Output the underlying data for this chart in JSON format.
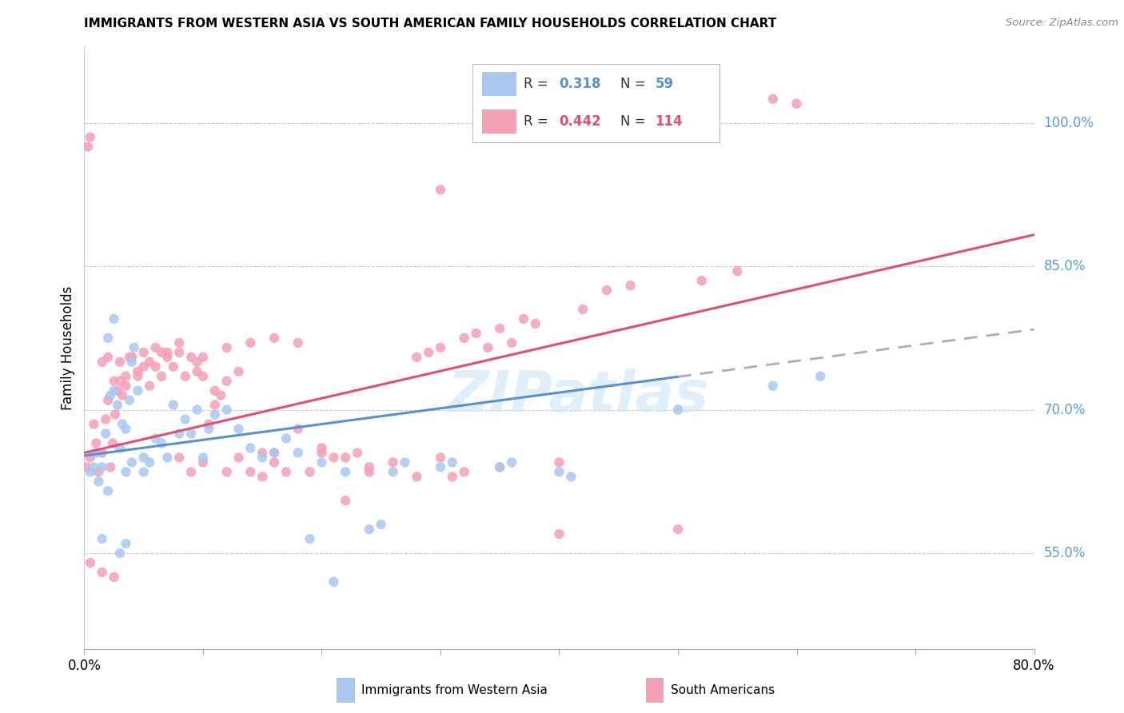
{
  "title": "IMMIGRANTS FROM WESTERN ASIA VS SOUTH AMERICAN FAMILY HOUSEHOLDS CORRELATION CHART",
  "source": "Source: ZipAtlas.com",
  "ylabel": "Family Households",
  "blue_color": "#A8C8F0",
  "pink_color": "#F4A0B5",
  "line_blue": "#5B8FD0",
  "line_pink": "#E05070",
  "line_dash_color": "#AAAACC",
  "watermark": "ZIPatlas",
  "blue_scatter": [
    [
      0.5,
      63.5
    ],
    [
      0.8,
      64.0
    ],
    [
      1.0,
      65.5
    ],
    [
      1.2,
      62.5
    ],
    [
      1.5,
      64.0
    ],
    [
      1.8,
      67.5
    ],
    [
      2.0,
      61.5
    ],
    [
      2.2,
      71.5
    ],
    [
      2.5,
      72.0
    ],
    [
      2.8,
      70.5
    ],
    [
      3.0,
      66.0
    ],
    [
      3.2,
      68.5
    ],
    [
      3.5,
      68.0
    ],
    [
      3.8,
      71.0
    ],
    [
      4.0,
      75.0
    ],
    [
      4.2,
      76.5
    ],
    [
      4.5,
      72.0
    ],
    [
      5.0,
      65.0
    ],
    [
      5.5,
      64.5
    ],
    [
      6.0,
      67.0
    ],
    [
      6.5,
      66.5
    ],
    [
      7.0,
      65.0
    ],
    [
      7.5,
      70.5
    ],
    [
      8.0,
      67.5
    ],
    [
      8.5,
      69.0
    ],
    [
      9.0,
      67.5
    ],
    [
      9.5,
      70.0
    ],
    [
      10.0,
      65.0
    ],
    [
      10.5,
      68.0
    ],
    [
      11.0,
      69.5
    ],
    [
      12.0,
      70.0
    ],
    [
      13.0,
      68.0
    ],
    [
      14.0,
      66.0
    ],
    [
      15.0,
      65.0
    ],
    [
      16.0,
      65.5
    ],
    [
      17.0,
      67.0
    ],
    [
      18.0,
      65.5
    ],
    [
      19.0,
      56.5
    ],
    [
      20.0,
      64.5
    ],
    [
      21.0,
      52.0
    ],
    [
      22.0,
      63.5
    ],
    [
      24.0,
      57.5
    ],
    [
      25.0,
      58.0
    ],
    [
      26.0,
      63.5
    ],
    [
      27.0,
      64.5
    ],
    [
      30.0,
      64.0
    ],
    [
      31.0,
      64.5
    ],
    [
      35.0,
      64.0
    ],
    [
      36.0,
      64.5
    ],
    [
      40.0,
      63.5
    ],
    [
      41.0,
      63.0
    ],
    [
      50.0,
      70.0
    ],
    [
      58.0,
      72.5
    ],
    [
      62.0,
      73.5
    ],
    [
      1.5,
      56.5
    ],
    [
      3.0,
      55.0
    ],
    [
      3.5,
      56.0
    ],
    [
      2.0,
      77.5
    ],
    [
      2.5,
      79.5
    ],
    [
      3.5,
      63.5
    ],
    [
      4.0,
      64.5
    ],
    [
      5.0,
      63.5
    ]
  ],
  "pink_scatter": [
    [
      0.2,
      64.0
    ],
    [
      0.3,
      97.5
    ],
    [
      0.5,
      98.5
    ],
    [
      0.5,
      65.0
    ],
    [
      0.8,
      68.5
    ],
    [
      1.0,
      66.5
    ],
    [
      1.2,
      63.5
    ],
    [
      1.5,
      65.5
    ],
    [
      1.8,
      69.0
    ],
    [
      2.0,
      71.0
    ],
    [
      2.2,
      64.0
    ],
    [
      2.4,
      66.5
    ],
    [
      2.6,
      69.5
    ],
    [
      2.8,
      72.0
    ],
    [
      3.0,
      73.0
    ],
    [
      3.2,
      71.5
    ],
    [
      3.5,
      73.5
    ],
    [
      3.8,
      75.5
    ],
    [
      4.0,
      75.5
    ],
    [
      4.5,
      73.5
    ],
    [
      5.0,
      74.5
    ],
    [
      5.5,
      72.5
    ],
    [
      6.0,
      74.5
    ],
    [
      6.5,
      73.5
    ],
    [
      7.0,
      76.0
    ],
    [
      7.5,
      74.5
    ],
    [
      8.0,
      77.0
    ],
    [
      8.5,
      73.5
    ],
    [
      9.0,
      75.5
    ],
    [
      9.5,
      75.0
    ],
    [
      10.0,
      73.5
    ],
    [
      10.5,
      68.5
    ],
    [
      11.0,
      70.5
    ],
    [
      11.5,
      71.5
    ],
    [
      12.0,
      73.0
    ],
    [
      13.0,
      65.0
    ],
    [
      14.0,
      63.5
    ],
    [
      15.0,
      63.0
    ],
    [
      16.0,
      65.5
    ],
    [
      17.0,
      63.5
    ],
    [
      18.0,
      68.0
    ],
    [
      19.0,
      63.5
    ],
    [
      20.0,
      65.5
    ],
    [
      21.0,
      65.0
    ],
    [
      22.0,
      60.5
    ],
    [
      23.0,
      65.5
    ],
    [
      24.0,
      63.5
    ],
    [
      28.0,
      75.5
    ],
    [
      29.0,
      76.0
    ],
    [
      30.0,
      76.5
    ],
    [
      31.0,
      63.0
    ],
    [
      32.0,
      77.5
    ],
    [
      33.0,
      78.0
    ],
    [
      34.0,
      76.5
    ],
    [
      35.0,
      78.5
    ],
    [
      36.0,
      77.0
    ],
    [
      37.0,
      79.5
    ],
    [
      38.0,
      79.0
    ],
    [
      30.0,
      93.0
    ],
    [
      40.0,
      57.0
    ],
    [
      42.0,
      80.5
    ],
    [
      44.0,
      82.5
    ],
    [
      46.0,
      83.0
    ],
    [
      50.0,
      57.5
    ],
    [
      52.0,
      83.5
    ],
    [
      55.0,
      84.5
    ],
    [
      58.0,
      102.5
    ],
    [
      60.0,
      102.0
    ],
    [
      1.5,
      75.0
    ],
    [
      2.0,
      75.5
    ],
    [
      3.0,
      75.0
    ],
    [
      4.0,
      75.5
    ],
    [
      5.0,
      76.0
    ],
    [
      6.0,
      76.5
    ],
    [
      7.0,
      75.5
    ],
    [
      8.0,
      76.0
    ],
    [
      10.0,
      75.5
    ],
    [
      12.0,
      76.5
    ],
    [
      14.0,
      77.0
    ],
    [
      16.0,
      77.5
    ],
    [
      18.0,
      77.0
    ],
    [
      2.5,
      73.0
    ],
    [
      3.5,
      72.5
    ],
    [
      4.5,
      74.0
    ],
    [
      5.5,
      75.0
    ],
    [
      6.5,
      76.0
    ],
    [
      9.5,
      74.0
    ],
    [
      11.0,
      72.0
    ],
    [
      13.0,
      74.0
    ],
    [
      0.5,
      54.0
    ],
    [
      1.5,
      53.0
    ],
    [
      2.5,
      52.5
    ],
    [
      8.0,
      65.0
    ],
    [
      9.0,
      63.5
    ],
    [
      10.0,
      64.5
    ],
    [
      12.0,
      63.5
    ],
    [
      15.0,
      65.5
    ],
    [
      16.0,
      64.5
    ],
    [
      20.0,
      66.0
    ],
    [
      22.0,
      65.0
    ],
    [
      24.0,
      64.0
    ],
    [
      26.0,
      64.5
    ],
    [
      28.0,
      63.0
    ],
    [
      30.0,
      65.0
    ],
    [
      32.0,
      63.5
    ],
    [
      35.0,
      64.0
    ],
    [
      40.0,
      64.5
    ]
  ],
  "blue_line_x0": 0,
  "blue_line_y0": 65.2,
  "blue_line_slope": 0.165,
  "blue_line_solid_end": 50,
  "pink_line_x0": 0,
  "pink_line_y0": 65.5,
  "pink_line_slope": 0.285,
  "xmin": 0,
  "xmax": 80,
  "ymin": 45,
  "ymax": 108,
  "yticks_right": [
    55,
    70,
    85,
    100
  ],
  "xticks": [
    0,
    10,
    20,
    30,
    40,
    50,
    60,
    70,
    80
  ],
  "xtick_labels_show": [
    0,
    80
  ]
}
